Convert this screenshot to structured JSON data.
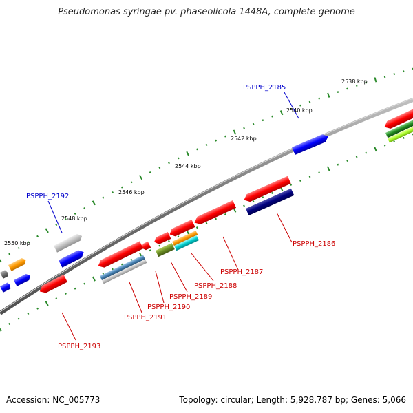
{
  "title": "Pseudomonas syringae pv. phaseolicola 1448A, complete genome",
  "accession": "Accession: NC_005773",
  "topology": "Topology: circular; Length: 5,928,787 bp; Genes: 5,066",
  "colors": {
    "backbone": "#808080",
    "tick": "#2a8a2a",
    "forward_label": "#0000cc",
    "reverse_label": "#cc0000"
  },
  "kbp_labels": [
    {
      "text": "2538 kbp",
      "kbp": 2538
    },
    {
      "text": "2540 kbp",
      "kbp": 2540
    },
    {
      "text": "2542 kbp",
      "kbp": 2542
    },
    {
      "text": "2544 kbp",
      "kbp": 2544
    },
    {
      "text": "2546 kbp",
      "kbp": 2546
    },
    {
      "text": "2548 kbp",
      "kbp": 2548
    },
    {
      "text": "2550 kbp",
      "kbp": 2550
    }
  ],
  "gene_labels": [
    {
      "text": "PSPPH_2185",
      "strand": "forward"
    },
    {
      "text": "PSPPH_2192",
      "strand": "forward"
    },
    {
      "text": "PSPPH_2186",
      "strand": "reverse"
    },
    {
      "text": "PSPPH_2187",
      "strand": "reverse"
    },
    {
      "text": "PSPPH_2188",
      "strand": "reverse"
    },
    {
      "text": "PSPPH_2189",
      "strand": "reverse"
    },
    {
      "text": "PSPPH_2190",
      "strand": "reverse"
    },
    {
      "text": "PSPPH_2191",
      "strand": "reverse"
    },
    {
      "text": "PSPPH_2193",
      "strand": "reverse"
    }
  ],
  "features": [
    {
      "name": "PSPPH_2185",
      "track": "forward",
      "color": "#0000ff"
    },
    {
      "name": "PSPPH_2192",
      "track": "forward",
      "color": "#0000ff"
    },
    {
      "name": "PSPPH_2186",
      "track": "reverse",
      "color": "#ff0000"
    },
    {
      "name": "PSPPH_2187",
      "track": "reverse",
      "color": "#ff0000"
    },
    {
      "name": "PSPPH_2188",
      "track": "reverse",
      "color": "#ff0000"
    },
    {
      "name": "PSPPH_2189",
      "track": "reverse",
      "color": "#ff0000"
    },
    {
      "name": "PSPPH_2190",
      "track": "reverse",
      "color": "#ff0000"
    },
    {
      "name": "PSPPH_2191",
      "track": "reverse",
      "color": "#ff0000"
    },
    {
      "name": "PSPPH_2193",
      "track": "reverse",
      "color": "#ff0000"
    },
    {
      "name": "feature-dark-blue",
      "track": "reverse-inner",
      "color": "#000080"
    },
    {
      "name": "feature-orange",
      "track": "reverse-inner",
      "color": "#ff9900"
    },
    {
      "name": "feature-cyan",
      "track": "reverse-inner",
      "color": "#00cccc"
    },
    {
      "name": "feature-olive",
      "track": "reverse-inner",
      "color": "#6b8e23"
    },
    {
      "name": "feature-steel-blue",
      "track": "reverse-inner",
      "color": "#4682b4"
    },
    {
      "name": "feature-gray",
      "track": "reverse-inner",
      "color": "#c0c0c0"
    },
    {
      "name": "feature-green",
      "track": "reverse-inner",
      "color": "#228b22"
    },
    {
      "name": "feature-lime",
      "track": "reverse-inner",
      "color": "#adff2f"
    }
  ]
}
